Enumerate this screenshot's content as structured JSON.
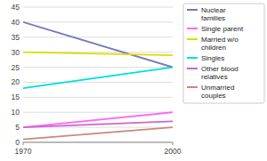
{
  "chart_data": {
    "type": "line",
    "x": [
      1970,
      2000
    ],
    "xlim": [
      1970,
      2000
    ],
    "xticks": [
      1970,
      2000
    ],
    "ylim": [
      0,
      45
    ],
    "yticks": [
      0,
      5,
      10,
      15,
      20,
      25,
      30,
      35,
      40,
      45
    ],
    "grid": true,
    "legend": "right",
    "series": [
      {
        "name": "Nuclear\nfamilies",
        "color": "#7777bb",
        "values": [
          40,
          25
        ]
      },
      {
        "name": "Single parent",
        "color": "#ff66ff",
        "values": [
          5,
          10
        ]
      },
      {
        "name": "Married w/o\nchildren",
        "color": "#dddd00",
        "values": [
          30,
          29
        ]
      },
      {
        "name": "Singles",
        "color": "#00dddd",
        "values": [
          18,
          25
        ]
      },
      {
        "name": "Other blood\nrelatives",
        "color": "#cc66cc",
        "values": [
          5,
          7
        ]
      },
      {
        "name": "Unmarried\ncouples",
        "color": "#cc8877",
        "values": [
          1,
          5
        ]
      }
    ]
  }
}
